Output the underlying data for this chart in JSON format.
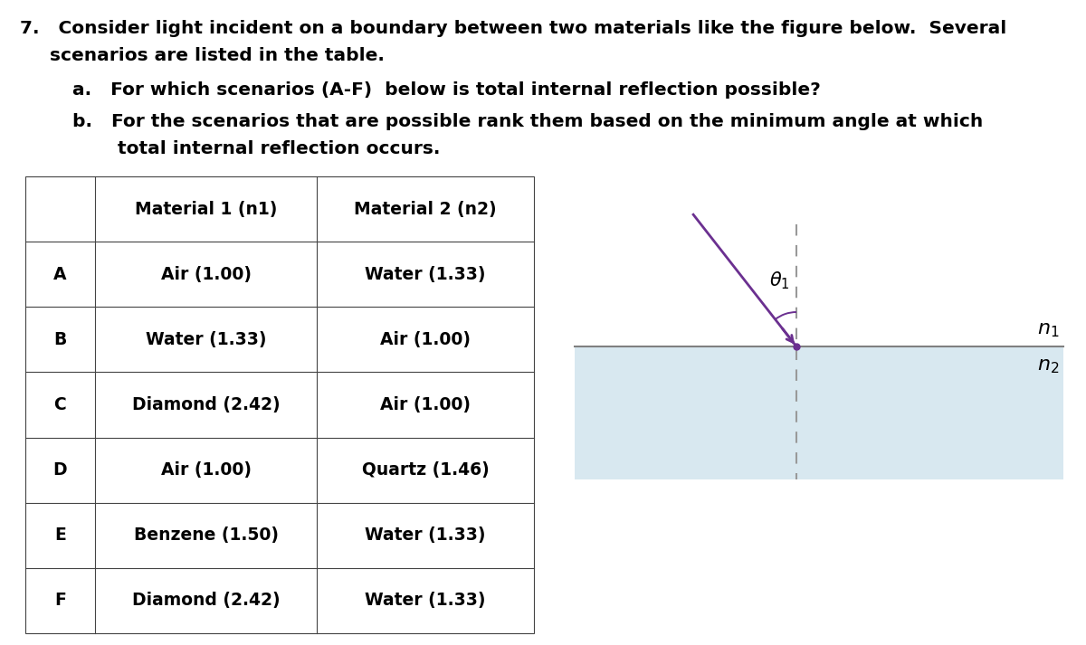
{
  "title_line1": "7.   Consider light incident on a boundary between two materials like the figure below.  Several",
  "title_line2": "     scenarios are listed in the table.",
  "sub_a": "a.   For which scenarios (A-F)  below is total internal reflection possible?",
  "sub_b1": "b.   For the scenarios that are possible rank them based on the minimum angle at which",
  "sub_b2": "      total internal reflection occurs.",
  "table_headers": [
    "",
    "Material 1 (n1)",
    "Material 2 (n2)"
  ],
  "table_rows": [
    [
      "A",
      "Air (1.00)",
      "Water (1.33)"
    ],
    [
      "B",
      "Water (1.33)",
      "Air (1.00)"
    ],
    [
      "C",
      "Diamond (2.42)",
      "Air (1.00)"
    ],
    [
      "D",
      "Air (1.00)",
      "Quartz (1.46)"
    ],
    [
      "E",
      "Benzene (1.50)",
      "Water (1.33)"
    ],
    [
      "F",
      "Diamond (2.42)",
      "Water (1.33)"
    ]
  ],
  "background_color": "#ffffff",
  "table_line_color": "#444444",
  "ray_color": "#6B3090",
  "boundary_color": "#808080",
  "lower_fill": "#d8e8f0",
  "dashed_color": "#999999",
  "font_size_main": 14.5,
  "font_size_table": 13.5
}
